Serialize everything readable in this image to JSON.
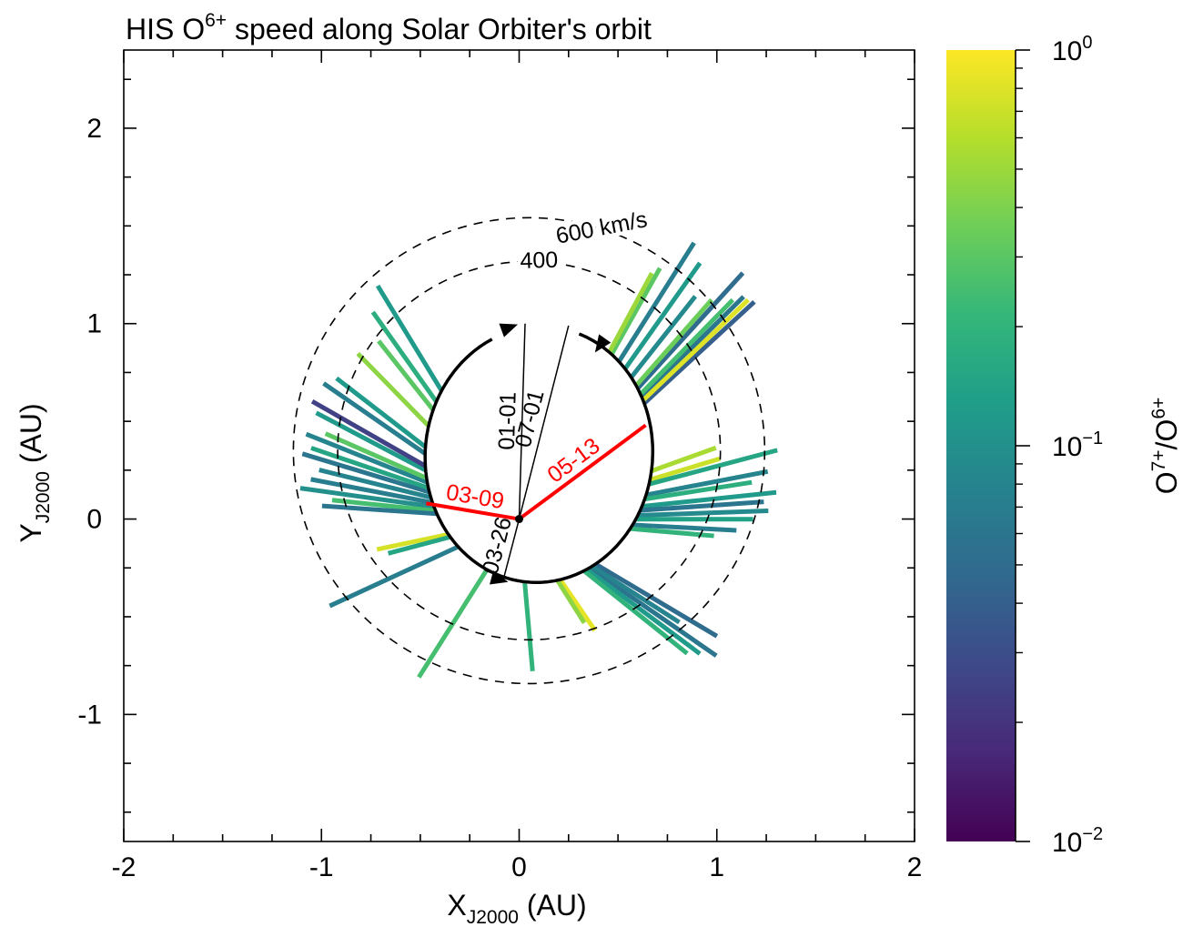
{
  "chart_data": {
    "type": "polar-ray",
    "title": "HIS O6+ speed along Solar Orbiter's orbit",
    "title_parts": {
      "pre": "HIS O",
      "sup": "6+",
      "post": " speed along Solar Orbiter's orbit"
    },
    "xlabel": {
      "main": "X",
      "sub": "J2000",
      "post": " (AU)"
    },
    "ylabel": {
      "main": "Y",
      "sub": "J2000",
      "post": " (AU)"
    },
    "xlim": [
      -2,
      2
    ],
    "ylim": [
      -1.65,
      2.4
    ],
    "x_ticks": [
      -2,
      -1,
      0,
      1,
      2
    ],
    "y_ticks": [
      -1,
      0,
      1,
      2
    ],
    "x_tick_labels": [
      "-2",
      "-1",
      "0",
      "1",
      "2"
    ],
    "y_tick_labels": [
      "-1",
      "0",
      "1",
      "2"
    ],
    "speed_scale_au_per_kms": 0.00112,
    "speed_rings": [
      {
        "speed_kms": 400,
        "label": "400",
        "label_angle_deg": 87
      },
      {
        "speed_kms": 600,
        "label": "600 km/s",
        "label_angle_deg": 72
      }
    ],
    "colorbar": {
      "label": {
        "num": "O",
        "num_sup": "7+",
        "sep": "/O",
        "den_sup": "6+"
      },
      "scale": "log",
      "range": [
        0.01,
        1
      ],
      "ticks": [
        {
          "value": 1,
          "base": "10",
          "exp": "0"
        },
        {
          "value": 0.1,
          "base": "10",
          "exp": "−1"
        },
        {
          "value": 0.01,
          "base": "10",
          "exp": "−2"
        }
      ],
      "colormap": [
        "#440154",
        "#482878",
        "#3e4989",
        "#31688e",
        "#26828e",
        "#1f9e89",
        "#35b779",
        "#6ece58",
        "#b5de2b",
        "#fde725"
      ]
    },
    "orbit": {
      "center": [
        0.1,
        0.33
      ],
      "semi_axes": [
        0.575,
        0.655
      ],
      "rotation_deg": -5,
      "gap_from_deg": 75,
      "gap_to_deg": 120
    },
    "date_markers": [
      {
        "label": "01-01",
        "point": [
          0.03,
          1.0
        ],
        "color": "#000000",
        "emphasis": false
      },
      {
        "label": "07-01",
        "point": [
          0.25,
          0.99
        ],
        "color": "#000000",
        "emphasis": false
      },
      {
        "label": "03-26",
        "point": [
          -0.08,
          -0.31
        ],
        "color": "#000000",
        "emphasis": false
      },
      {
        "label": "03-09",
        "point": [
          -0.47,
          0.08
        ],
        "color": "#ff0000",
        "emphasis": true
      },
      {
        "label": "05-13",
        "point": [
          0.64,
          0.48
        ],
        "color": "#ff0000",
        "emphasis": true
      }
    ],
    "direction_arrows": [
      {
        "point": [
          -0.05,
          0.98
        ],
        "direction_deg": 20
      },
      {
        "point": [
          0.41,
          0.89
        ],
        "direction_deg": 235
      },
      {
        "point": [
          -0.1,
          -0.31
        ],
        "direction_deg": -15
      }
    ],
    "wind_rays": [
      {
        "angle_deg": 48,
        "speed_kms": 710,
        "ratio": 0.05
      },
      {
        "angle_deg": 45,
        "speed_kms": 650,
        "ratio": 0.06
      },
      {
        "angle_deg": 43,
        "speed_kms": 680,
        "ratio": 0.04
      },
      {
        "angle_deg": 44,
        "speed_kms": 660,
        "ratio": 0.8
      },
      {
        "angle_deg": 46,
        "speed_kms": 600,
        "ratio": 0.25
      },
      {
        "angle_deg": 49,
        "speed_kms": 520,
        "ratio": 0.35
      },
      {
        "angle_deg": 52,
        "speed_kms": 470,
        "ratio": 0.09
      },
      {
        "angle_deg": 55,
        "speed_kms": 590,
        "ratio": 0.12
      },
      {
        "angle_deg": 58,
        "speed_kms": 640,
        "ratio": 0.07
      },
      {
        "angle_deg": 61,
        "speed_kms": 450,
        "ratio": 0.3
      },
      {
        "angle_deg": 62,
        "speed_kms": 410,
        "ratio": 0.5
      },
      {
        "angle_deg": 20,
        "speed_kms": 310,
        "ratio": 0.55
      },
      {
        "angle_deg": 17,
        "speed_kms": 330,
        "ratio": 0.7
      },
      {
        "angle_deg": 15,
        "speed_kms": 600,
        "ratio": 0.15
      },
      {
        "angle_deg": 11,
        "speed_kms": 560,
        "ratio": 0.08
      },
      {
        "angle_deg": 9,
        "speed_kms": 490,
        "ratio": 0.18
      },
      {
        "angle_deg": 6,
        "speed_kms": 610,
        "ratio": 0.12
      },
      {
        "angle_deg": 4,
        "speed_kms": 560,
        "ratio": 0.06
      },
      {
        "angle_deg": 2,
        "speed_kms": 590,
        "ratio": 0.09
      },
      {
        "angle_deg": 0,
        "speed_kms": 530,
        "ratio": 0.14
      },
      {
        "angle_deg": -3,
        "speed_kms": 470,
        "ratio": 0.07
      },
      {
        "angle_deg": -5,
        "speed_kms": 380,
        "ratio": 0.2
      },
      {
        "angle_deg": -31,
        "speed_kms": 640,
        "ratio": 0.05
      },
      {
        "angle_deg": -35,
        "speed_kms": 700,
        "ratio": 0.06
      },
      {
        "angle_deg": -37,
        "speed_kms": 640,
        "ratio": 0.12
      },
      {
        "angle_deg": -39,
        "speed_kms": 600,
        "ratio": 0.2
      },
      {
        "angle_deg": -33,
        "speed_kms": 470,
        "ratio": 0.08
      },
      {
        "angle_deg": -56,
        "speed_kms": 280,
        "ratio": 0.85
      },
      {
        "angle_deg": -58,
        "speed_kms": 230,
        "ratio": 0.45
      },
      {
        "angle_deg": -85,
        "speed_kms": 410,
        "ratio": 0.2
      },
      {
        "angle_deg": -122,
        "speed_kms": 580,
        "ratio": 0.25
      },
      {
        "angle_deg": -155,
        "speed_kms": 640,
        "ratio": 0.07
      },
      {
        "angle_deg": -168,
        "speed_kms": 330,
        "ratio": 0.75
      },
      {
        "angle_deg": -165,
        "speed_kms": 290,
        "ratio": 0.15
      },
      {
        "angle_deg": 172,
        "speed_kms": 610,
        "ratio": 0.1
      },
      {
        "angle_deg": 169,
        "speed_kms": 560,
        "ratio": 0.07
      },
      {
        "angle_deg": 174,
        "speed_kms": 470,
        "ratio": 0.25
      },
      {
        "angle_deg": 176,
        "speed_kms": 520,
        "ratio": 0.06
      },
      {
        "angle_deg": 166,
        "speed_kms": 520,
        "ratio": 0.08
      },
      {
        "angle_deg": 163,
        "speed_kms": 600,
        "ratio": 0.06
      },
      {
        "angle_deg": 161,
        "speed_kms": 560,
        "ratio": 0.15
      },
      {
        "angle_deg": 158,
        "speed_kms": 590,
        "ratio": 0.08
      },
      {
        "angle_deg": 156,
        "speed_kms": 500,
        "ratio": 0.3
      },
      {
        "angle_deg": 152,
        "speed_kms": 560,
        "ratio": 0.12
      },
      {
        "angle_deg": 150,
        "speed_kms": 590,
        "ratio": 0.025
      },
      {
        "angle_deg": 145,
        "speed_kms": 560,
        "ratio": 0.07
      },
      {
        "angle_deg": 142,
        "speed_kms": 510,
        "ratio": 0.12
      },
      {
        "angle_deg": 134,
        "speed_kms": 460,
        "ratio": 0.45
      },
      {
        "angle_deg": 125,
        "speed_kms": 500,
        "ratio": 0.18
      },
      {
        "angle_deg": 121,
        "speed_kms": 560,
        "ratio": 0.12
      },
      {
        "angle_deg": 128,
        "speed_kms": 400,
        "ratio": 0.3
      }
    ]
  },
  "layout_frame_note": ""
}
